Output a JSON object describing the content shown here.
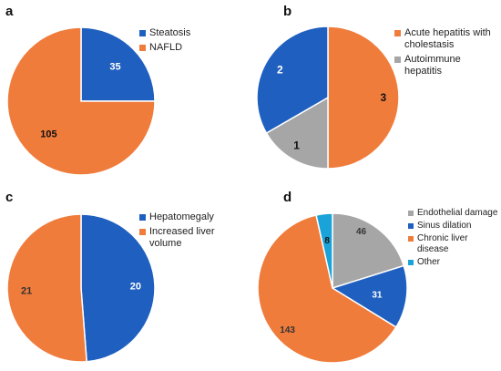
{
  "chart_data": [
    {
      "type": "pie",
      "panel": "a",
      "categories": [
        "Steatosis",
        "NAFLD"
      ],
      "values": [
        35,
        105
      ],
      "colors": [
        "#1f5fbf",
        "#f07c3c"
      ],
      "label_colors": [
        "#ffffff",
        "#111111"
      ],
      "legend": "right"
    },
    {
      "type": "pie",
      "panel": "b",
      "categories": [
        "Acute hepatitis with cholestasis",
        "Autoimmune hepatitis",
        ""
      ],
      "legend_categories": [
        "Acute hepatitis with cholestasis",
        "Autoimmune hepatitis"
      ],
      "values": [
        3,
        1,
        2
      ],
      "colors": [
        "#f07c3c",
        "#a6a6a6",
        "#1f5fbf"
      ],
      "label_colors": [
        "#111111",
        "#111111",
        "#ffffff"
      ],
      "legend": "right"
    },
    {
      "type": "pie",
      "panel": "c",
      "categories": [
        "Hepatomegaly",
        "Increased liver volume"
      ],
      "values": [
        20,
        21
      ],
      "colors": [
        "#1f5fbf",
        "#f07c3c"
      ],
      "label_colors": [
        "#ffffff",
        "#333333"
      ],
      "legend": "right"
    },
    {
      "type": "pie",
      "panel": "d",
      "categories": [
        "Endothelial damage",
        "Sinus dilation",
        "Chronic liver disease",
        "Other"
      ],
      "values": [
        46,
        31,
        143,
        8
      ],
      "colors": [
        "#a6a6a6",
        "#1f5fbf",
        "#f07c3c",
        "#1aa3d9"
      ],
      "label_colors": [
        "#333333",
        "#ffffff",
        "#333333",
        "#111111"
      ],
      "legend": "right"
    }
  ]
}
